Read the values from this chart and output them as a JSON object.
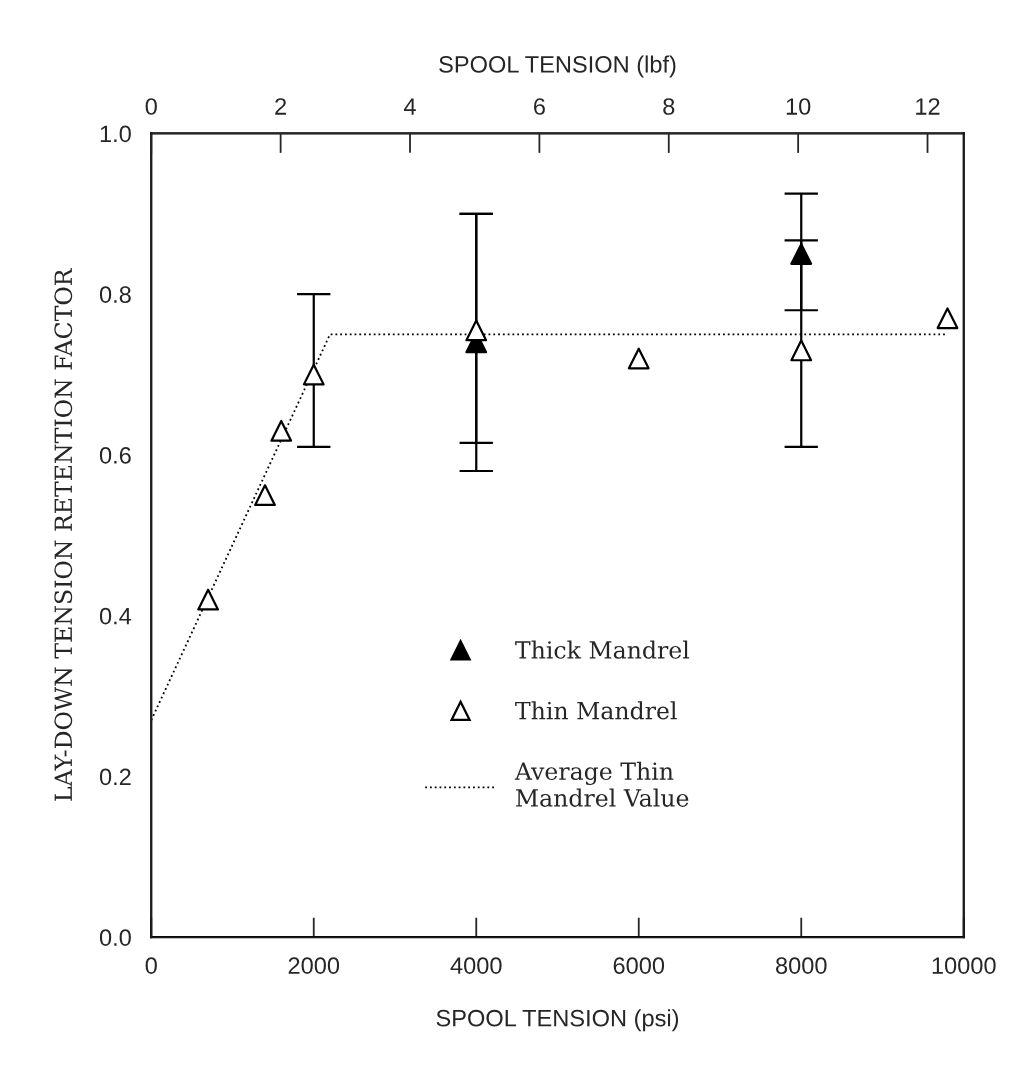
{
  "chart_data": {
    "type": "scatter",
    "xlabel": "SPOOL TENSION (psi)",
    "ylabel": "LAY-DOWN TENSION RETENTION FACTOR",
    "x2label": "SPOOL TENSION (lbf)",
    "xlim": [
      0,
      10000
    ],
    "xticks": [
      0,
      2000,
      4000,
      6000,
      8000,
      10000
    ],
    "ylim": [
      0,
      1.0
    ],
    "yticks": [
      {
        "value": 0,
        "label": "0.0"
      },
      {
        "value": 0.2,
        "label": "0.2"
      },
      {
        "value": 0.4,
        "label": "0.4"
      },
      {
        "value": 0.6,
        "label": "0.6"
      },
      {
        "value": 0.8,
        "label": "0.8"
      },
      {
        "value": 1.0,
        "label": "1.0"
      }
    ],
    "x2lim": [
      0,
      12.56
    ],
    "x2ticks": [
      0,
      2,
      4,
      6,
      8,
      10,
      12
    ],
    "legend": "lower center",
    "grid": false,
    "series": [
      {
        "name": "Thick Mandrel",
        "marker": "triangle",
        "color": "#000000",
        "x": [
          4000,
          8000
        ],
        "values": [
          0.74,
          0.85
        ],
        "errors": [
          [
            0.615,
            0.9
          ],
          [
            0.78,
            0.925
          ]
        ]
      },
      {
        "name": "Thin Mandrel",
        "marker": "triangle",
        "color": "#ffffff",
        "x": [
          700,
          1400,
          1600,
          2000,
          4000,
          6000,
          8000,
          9800
        ],
        "values": [
          0.42,
          0.55,
          0.63,
          0.7,
          0.755,
          0.72,
          0.73,
          0.77
        ],
        "errors": [
          null,
          null,
          null,
          [
            0.61,
            0.8
          ],
          [
            0.58,
            0.9
          ],
          null,
          [
            0.61,
            0.867
          ],
          null
        ]
      },
      {
        "name": "Average Thin\nMandrel Value",
        "type": "line",
        "line_style": "dotted",
        "marker": "none",
        "color": "#000000",
        "x": [
          0,
          2200,
          9800
        ],
        "values": [
          0.27,
          0.75,
          0.75
        ]
      }
    ]
  }
}
